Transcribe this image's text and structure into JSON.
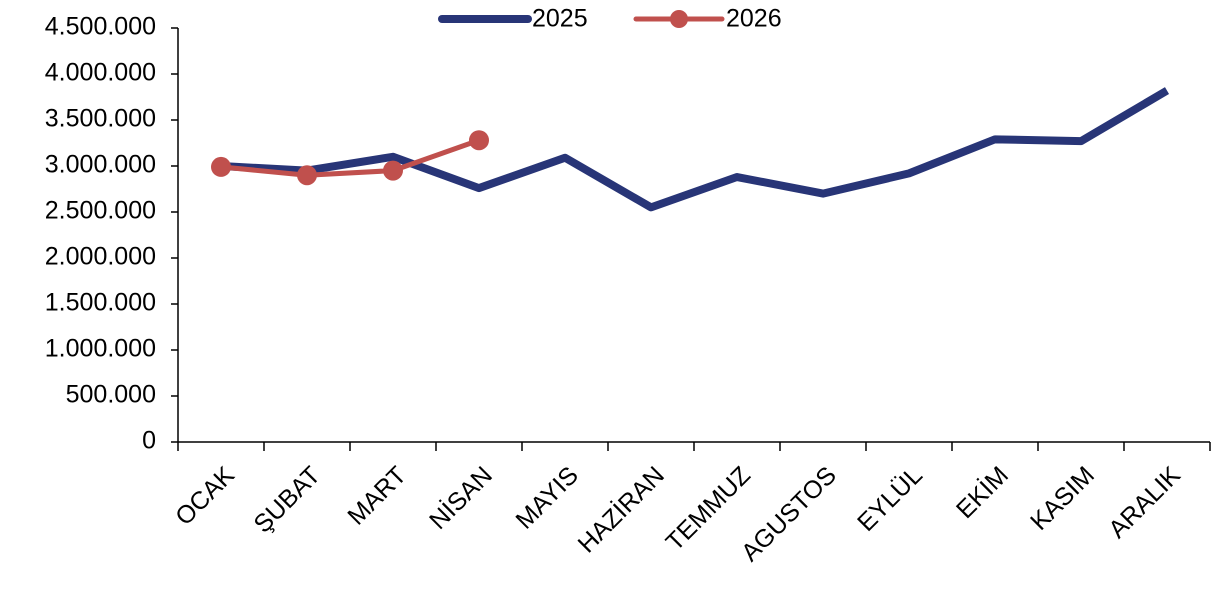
{
  "chart_data": {
    "type": "line",
    "categories": [
      "OCAK",
      "ŞUBAT",
      "MART",
      "NİSAN",
      "MAYIS",
      "HAZİRAN",
      "TEMMUZ",
      "AGUSTOS",
      "EYLÜL",
      "EKİM",
      "KASIM",
      "ARALIK"
    ],
    "series": [
      {
        "name": "2025",
        "color": "#283577",
        "values": [
          3000000,
          2950000,
          3100000,
          2760000,
          3090000,
          2550000,
          2880000,
          2700000,
          2920000,
          3290000,
          3270000,
          3820000
        ]
      },
      {
        "name": "2026",
        "color": "#c0504d",
        "values": [
          2990000,
          2900000,
          2950000,
          3280000,
          null,
          null,
          null,
          null,
          null,
          null,
          null,
          null
        ]
      }
    ],
    "ylim": [
      0,
      4500000
    ],
    "yticks": [
      0,
      {
        "value": 500000,
        "label": "500.000"
      },
      {
        "value": 1000000,
        "label": "1.000.000"
      },
      {
        "value": 1500000,
        "label": "1.500.000"
      },
      {
        "value": 2000000,
        "label": "2.000.000"
      },
      {
        "value": 2500000,
        "label": "2.500.000"
      },
      {
        "value": 3000000,
        "label": "3.000.000"
      },
      {
        "value": 3500000,
        "label": "3.500.000"
      },
      {
        "value": 4000000,
        "label": "4.000.000"
      },
      {
        "value": 4500000,
        "label": "4.500.000"
      }
    ],
    "grid": false,
    "legend": "top"
  }
}
